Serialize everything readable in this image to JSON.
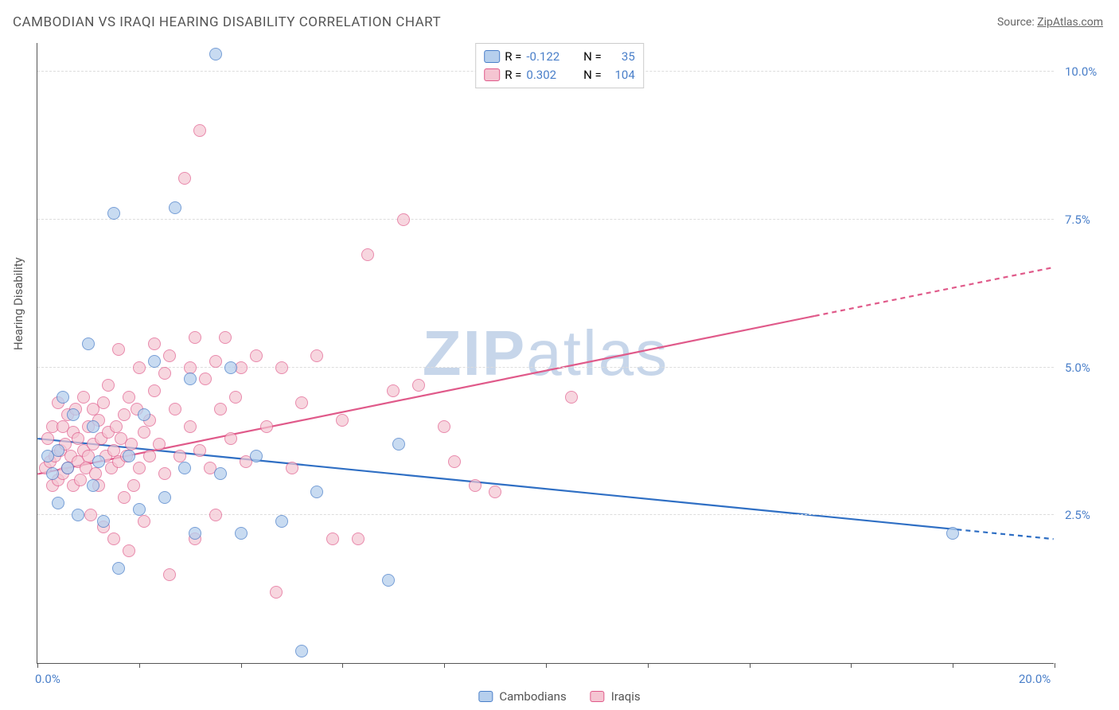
{
  "title": "CAMBODIAN VS IRAQI HEARING DISABILITY CORRELATION CHART",
  "source_label": "Source:",
  "source_name": "ZipAtlas.com",
  "y_axis_title": "Hearing Disability",
  "watermark_bold": "ZIP",
  "watermark_light": "atlas",
  "chart": {
    "type": "scatter",
    "xlim": [
      0,
      20
    ],
    "ylim": [
      0,
      10.5
    ],
    "x_label_min": "0.0%",
    "x_label_max": "20.0%",
    "x_ticks": [
      0,
      2,
      4,
      6,
      8,
      10,
      12,
      14,
      16,
      18,
      20
    ],
    "y_gridlines": [
      2.5,
      5.0,
      7.5,
      10.0
    ],
    "y_tick_labels": [
      "2.5%",
      "5.0%",
      "7.5%",
      "10.0%"
    ],
    "background_color": "#ffffff",
    "grid_color": "#dddddd",
    "series": [
      {
        "name": "Cambodians",
        "fill": "#b6cfed",
        "stroke": "#4a7fc9",
        "opacity": 0.75,
        "marker_radius": 8,
        "r_label": "R =",
        "r_value": "-0.122",
        "n_label": "N =",
        "n_value": "35",
        "trend": {
          "x1": 0,
          "y1": 3.8,
          "x2": 20,
          "y2": 2.1,
          "solid_to_x": 18.1,
          "color": "#2f6fc4",
          "width": 2.2
        },
        "points": [
          [
            0.2,
            3.5
          ],
          [
            0.3,
            3.2
          ],
          [
            0.4,
            3.6
          ],
          [
            0.4,
            2.7
          ],
          [
            0.5,
            4.5
          ],
          [
            0.6,
            3.3
          ],
          [
            0.7,
            4.2
          ],
          [
            0.8,
            2.5
          ],
          [
            1.0,
            5.4
          ],
          [
            1.1,
            3.0
          ],
          [
            1.1,
            4.0
          ],
          [
            1.2,
            3.4
          ],
          [
            1.3,
            2.4
          ],
          [
            1.5,
            7.6
          ],
          [
            1.6,
            1.6
          ],
          [
            1.8,
            3.5
          ],
          [
            2.0,
            2.6
          ],
          [
            2.1,
            4.2
          ],
          [
            2.3,
            5.1
          ],
          [
            2.5,
            2.8
          ],
          [
            2.7,
            7.7
          ],
          [
            2.9,
            3.3
          ],
          [
            3.0,
            4.8
          ],
          [
            3.1,
            2.2
          ],
          [
            3.5,
            10.3
          ],
          [
            3.6,
            3.2
          ],
          [
            3.8,
            5.0
          ],
          [
            4.0,
            2.2
          ],
          [
            4.3,
            3.5
          ],
          [
            4.8,
            2.4
          ],
          [
            5.2,
            0.2
          ],
          [
            5.5,
            2.9
          ],
          [
            6.9,
            1.4
          ],
          [
            7.1,
            3.7
          ],
          [
            18.0,
            2.2
          ]
        ]
      },
      {
        "name": "Iraqis",
        "fill": "#f5c5d2",
        "stroke": "#e05a8a",
        "opacity": 0.7,
        "marker_radius": 8,
        "r_label": "R =",
        "r_value": "0.302",
        "n_label": "N =",
        "n_value": "104",
        "trend": {
          "x1": 0,
          "y1": 3.2,
          "x2": 20,
          "y2": 6.7,
          "solid_to_x": 15.3,
          "color": "#e05a8a",
          "width": 2.2
        },
        "points": [
          [
            0.15,
            3.3
          ],
          [
            0.2,
            3.8
          ],
          [
            0.25,
            3.4
          ],
          [
            0.3,
            3.0
          ],
          [
            0.3,
            4.0
          ],
          [
            0.35,
            3.5
          ],
          [
            0.4,
            3.1
          ],
          [
            0.4,
            4.4
          ],
          [
            0.45,
            3.6
          ],
          [
            0.5,
            3.2
          ],
          [
            0.5,
            4.0
          ],
          [
            0.55,
            3.7
          ],
          [
            0.6,
            3.3
          ],
          [
            0.6,
            4.2
          ],
          [
            0.65,
            3.5
          ],
          [
            0.7,
            3.0
          ],
          [
            0.7,
            3.9
          ],
          [
            0.75,
            4.3
          ],
          [
            0.8,
            3.4
          ],
          [
            0.8,
            3.8
          ],
          [
            0.85,
            3.1
          ],
          [
            0.9,
            4.5
          ],
          [
            0.9,
            3.6
          ],
          [
            0.95,
            3.3
          ],
          [
            1.0,
            4.0
          ],
          [
            1.0,
            3.5
          ],
          [
            1.05,
            2.5
          ],
          [
            1.1,
            4.3
          ],
          [
            1.1,
            3.7
          ],
          [
            1.15,
            3.2
          ],
          [
            1.2,
            4.1
          ],
          [
            1.2,
            3.0
          ],
          [
            1.25,
            3.8
          ],
          [
            1.3,
            4.4
          ],
          [
            1.3,
            2.3
          ],
          [
            1.35,
            3.5
          ],
          [
            1.4,
            3.9
          ],
          [
            1.4,
            4.7
          ],
          [
            1.45,
            3.3
          ],
          [
            1.5,
            3.6
          ],
          [
            1.5,
            2.1
          ],
          [
            1.55,
            4.0
          ],
          [
            1.6,
            3.4
          ],
          [
            1.6,
            5.3
          ],
          [
            1.65,
            3.8
          ],
          [
            1.7,
            2.8
          ],
          [
            1.7,
            4.2
          ],
          [
            1.75,
            3.5
          ],
          [
            1.8,
            1.9
          ],
          [
            1.8,
            4.5
          ],
          [
            1.85,
            3.7
          ],
          [
            1.9,
            3.0
          ],
          [
            1.95,
            4.3
          ],
          [
            2.0,
            3.3
          ],
          [
            2.0,
            5.0
          ],
          [
            2.1,
            3.9
          ],
          [
            2.1,
            2.4
          ],
          [
            2.2,
            4.1
          ],
          [
            2.2,
            3.5
          ],
          [
            2.3,
            4.6
          ],
          [
            2.3,
            5.4
          ],
          [
            2.4,
            3.7
          ],
          [
            2.5,
            3.2
          ],
          [
            2.5,
            4.9
          ],
          [
            2.6,
            5.2
          ],
          [
            2.6,
            1.5
          ],
          [
            2.7,
            4.3
          ],
          [
            2.8,
            3.5
          ],
          [
            2.9,
            8.2
          ],
          [
            3.0,
            4.0
          ],
          [
            3.0,
            5.0
          ],
          [
            3.1,
            2.1
          ],
          [
            3.1,
            5.5
          ],
          [
            3.2,
            3.6
          ],
          [
            3.2,
            9.0
          ],
          [
            3.3,
            4.8
          ],
          [
            3.4,
            3.3
          ],
          [
            3.5,
            5.1
          ],
          [
            3.5,
            2.5
          ],
          [
            3.6,
            4.3
          ],
          [
            3.7,
            5.5
          ],
          [
            3.8,
            3.8
          ],
          [
            3.9,
            4.5
          ],
          [
            4.0,
            5.0
          ],
          [
            4.1,
            3.4
          ],
          [
            4.3,
            5.2
          ],
          [
            4.5,
            4.0
          ],
          [
            4.7,
            1.2
          ],
          [
            4.8,
            5.0
          ],
          [
            5.0,
            3.3
          ],
          [
            5.2,
            4.4
          ],
          [
            5.5,
            5.2
          ],
          [
            5.8,
            2.1
          ],
          [
            6.0,
            4.1
          ],
          [
            6.3,
            2.1
          ],
          [
            6.5,
            6.9
          ],
          [
            7.0,
            4.6
          ],
          [
            7.2,
            7.5
          ],
          [
            7.5,
            4.7
          ],
          [
            8.2,
            3.4
          ],
          [
            8.6,
            3.0
          ],
          [
            9.0,
            2.9
          ],
          [
            10.5,
            4.5
          ],
          [
            8.0,
            4.0
          ]
        ]
      }
    ]
  },
  "legend_bottom": [
    {
      "label": "Cambodians",
      "fill": "#b6cfed",
      "stroke": "#4a7fc9"
    },
    {
      "label": "Iraqis",
      "fill": "#f5c5d2",
      "stroke": "#e05a8a"
    }
  ]
}
